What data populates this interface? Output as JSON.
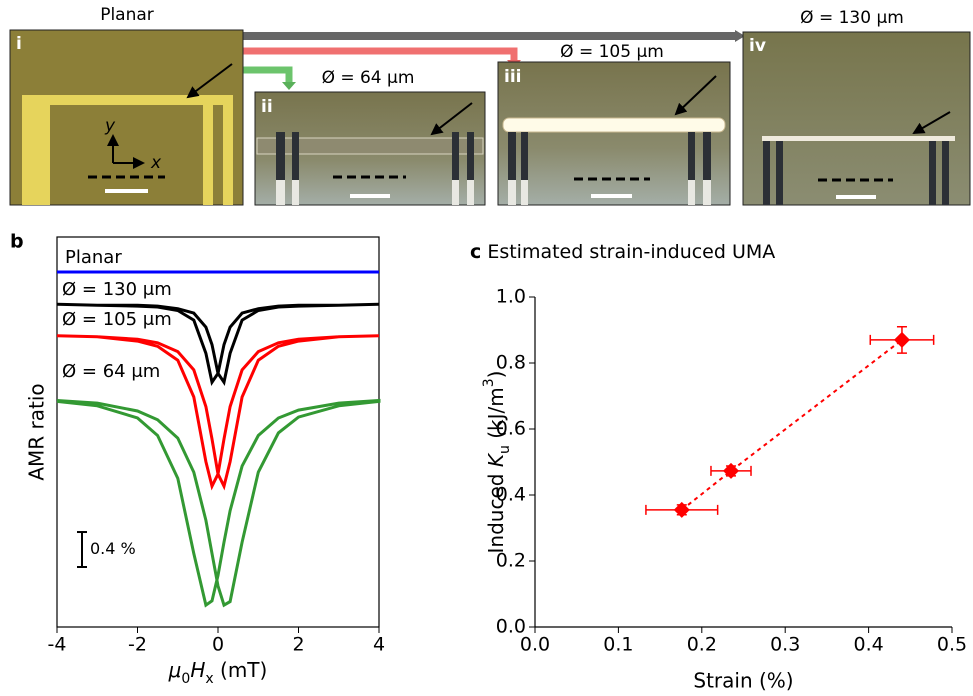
{
  "photos": {
    "labels": [
      {
        "title": "Planar",
        "tag": "i"
      },
      {
        "title": "Ø = 64 μm",
        "tag": "ii"
      },
      {
        "title": "Ø = 105 μm",
        "tag": "iii"
      },
      {
        "title": "Ø = 130 μm",
        "tag": "iv"
      }
    ],
    "axis_labels": [
      "y",
      "x"
    ]
  },
  "chart_data": [
    {
      "type": "line",
      "panel": "b",
      "ylabel": "AMR ratio",
      "xlabel_parts": [
        "μ",
        "0",
        "H",
        "x",
        " (mT)"
      ],
      "x": [
        -4,
        -3,
        -2,
        -1.5,
        -1,
        -0.6,
        -0.3,
        -0.15,
        0,
        0.15,
        0.3,
        0.6,
        1,
        1.5,
        2,
        3,
        4,
        4,
        3,
        2,
        1.5,
        1,
        0.6,
        0.3,
        0.15,
        0,
        -0.15,
        -0.3,
        -0.6,
        -1,
        -1.5,
        -2,
        -3,
        -4
      ],
      "xlim": [
        -4,
        4
      ],
      "xticks": [
        -4,
        -2,
        0,
        2,
        4
      ],
      "ylim": [
        0,
        4.46
      ],
      "series": [
        {
          "name": "Planar",
          "color": "#0000ff",
          "values": [
            4.06,
            4.06,
            4.06,
            4.06,
            4.06,
            4.06,
            4.06,
            4.06,
            4.06,
            4.06,
            4.06,
            4.06,
            4.06,
            4.06,
            4.06,
            4.06,
            4.06,
            4.06,
            4.06,
            4.06,
            4.06,
            4.06,
            4.06,
            4.06,
            4.06,
            4.06,
            4.06,
            4.06,
            4.06,
            4.06,
            4.06,
            4.06,
            4.06,
            4.06
          ]
        },
        {
          "name": "Ø = 130 μm",
          "color": "#000000",
          "values": [
            3.69,
            3.68,
            3.68,
            3.67,
            3.64,
            3.59,
            3.43,
            3.23,
            2.9,
            2.8,
            3.13,
            3.51,
            3.62,
            3.66,
            3.67,
            3.68,
            3.69,
            3.69,
            3.68,
            3.68,
            3.67,
            3.64,
            3.59,
            3.43,
            3.23,
            2.9,
            2.8,
            3.13,
            3.51,
            3.62,
            3.66,
            3.67,
            3.68,
            3.69
          ]
        },
        {
          "name": "Ø = 105 μm",
          "color": "#ff0000",
          "values": [
            3.33,
            3.32,
            3.29,
            3.25,
            3.15,
            2.94,
            2.52,
            2.15,
            1.75,
            1.61,
            1.89,
            2.63,
            3.05,
            3.21,
            3.27,
            3.32,
            3.33,
            3.33,
            3.32,
            3.29,
            3.25,
            3.15,
            2.94,
            2.52,
            2.15,
            1.75,
            1.61,
            1.89,
            2.63,
            3.05,
            3.21,
            3.27,
            3.32,
            3.33
          ]
        },
        {
          "name": "Ø = 64 μm",
          "color": "#339933",
          "values": [
            2.59,
            2.56,
            2.47,
            2.37,
            2.16,
            1.77,
            1.22,
            0.84,
            0.47,
            0.25,
            0.29,
            0.97,
            1.77,
            2.22,
            2.4,
            2.53,
            2.58,
            2.59,
            2.56,
            2.48,
            2.39,
            2.19,
            1.84,
            1.33,
            0.97,
            0.59,
            0.3,
            0.25,
            0.84,
            1.7,
            2.19,
            2.39,
            2.53,
            2.58
          ]
        }
      ],
      "scale_bar": {
        "value": 0.4,
        "label": "0.4 %"
      }
    },
    {
      "type": "scatter",
      "panel": "c",
      "title": "Estimated strain-induced UMA",
      "xlabel": "Strain (%)",
      "ylabel_parts": [
        "Induced ",
        "K",
        "u",
        " (kJ/m",
        "3",
        ")"
      ],
      "xlim": [
        0,
        0.5
      ],
      "xticks": [
        {
          "value": 0,
          "label": "0.0"
        },
        0.1,
        0.2,
        0.3,
        0.4,
        0.5
      ],
      "ylim": [
        0,
        1
      ],
      "yticks": [
        {
          "value": 0,
          "label": "0.0"
        },
        0.2,
        0.4,
        0.6,
        0.8,
        {
          "value": 1,
          "label": "1.0"
        }
      ],
      "series": [
        {
          "color": "#ff0000",
          "x": [
            0.176,
            0.235,
            0.44
          ],
          "values": [
            0.355,
            0.473,
            0.87
          ],
          "x_errors": [
            0.043,
            0.024,
            0.038
          ],
          "errors": [
            0.015,
            0.015,
            0.04
          ]
        }
      ],
      "fit_line": true
    }
  ]
}
